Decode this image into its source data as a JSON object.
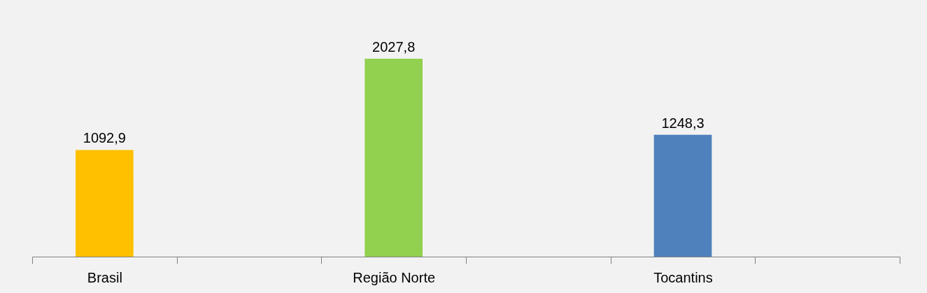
{
  "chart_data": {
    "type": "bar",
    "categories": [
      "Brasil",
      null,
      "Região Norte",
      null,
      "Tocantins",
      null
    ],
    "values": [
      1092.9,
      null,
      2027.8,
      null,
      1248.3,
      null
    ],
    "colors": [
      "#ffc000",
      null,
      "#92d050",
      null,
      "#4f81bd",
      null
    ],
    "value_labels": [
      "1092,9",
      null,
      "2027,8",
      null,
      "1248,3",
      null
    ],
    "grid": false
  }
}
